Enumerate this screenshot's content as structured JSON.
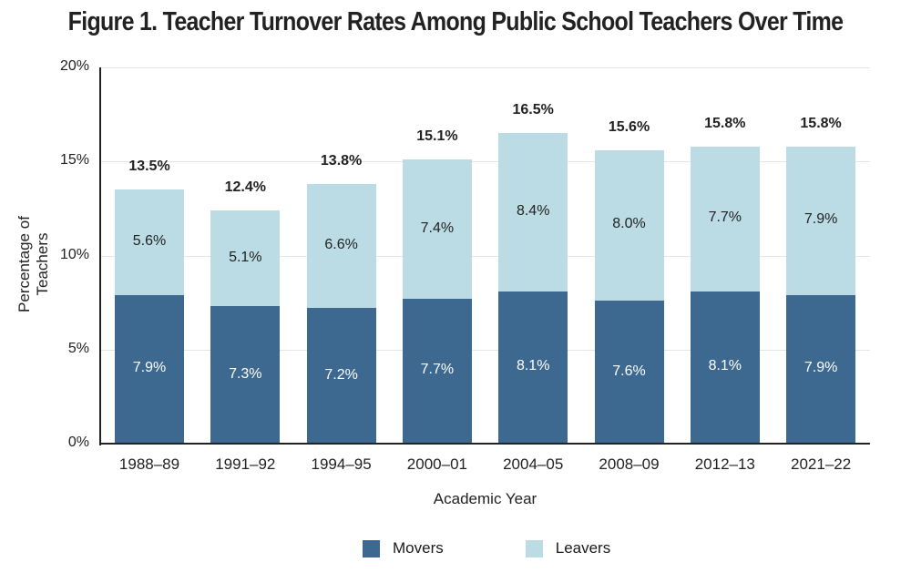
{
  "chart_data": {
    "type": "bar",
    "stacked": true,
    "title": "Figure 1. Teacher Turnover Rates Among Public School Teachers Over Time",
    "xlabel": "Academic Year",
    "ylabel": "Percentage of Teachers",
    "ylim": [
      0,
      20
    ],
    "yticks": [
      "0%",
      "5%",
      "10%",
      "15%",
      "20%"
    ],
    "grid": true,
    "legend_position": "bottom",
    "categories": [
      "1988–89",
      "1991–92",
      "1994–95",
      "2000–01",
      "2004–05",
      "2008–09",
      "2012–13",
      "2021–22"
    ],
    "series": [
      {
        "name": "Movers",
        "color": "#3d6990",
        "values": [
          7.9,
          7.3,
          7.2,
          7.7,
          8.1,
          7.6,
          8.1,
          7.9
        ],
        "labels": [
          "7.9%",
          "7.3%",
          "7.2%",
          "7.7%",
          "8.1%",
          "7.6%",
          "8.1%",
          "7.9%"
        ]
      },
      {
        "name": "Leavers",
        "color": "#bbdce5",
        "values": [
          5.6,
          5.1,
          6.6,
          7.4,
          8.4,
          8.0,
          7.7,
          7.9
        ],
        "labels": [
          "5.6%",
          "5.1%",
          "6.6%",
          "7.4%",
          "8.4%",
          "8.0%",
          "7.7%",
          "7.9%"
        ]
      }
    ],
    "totals": [
      13.5,
      12.4,
      13.8,
      15.1,
      16.5,
      15.6,
      15.8,
      15.8
    ],
    "total_labels": [
      "13.5%",
      "12.4%",
      "13.8%",
      "15.1%",
      "16.5%",
      "15.6%",
      "15.8%",
      "15.8%"
    ]
  }
}
